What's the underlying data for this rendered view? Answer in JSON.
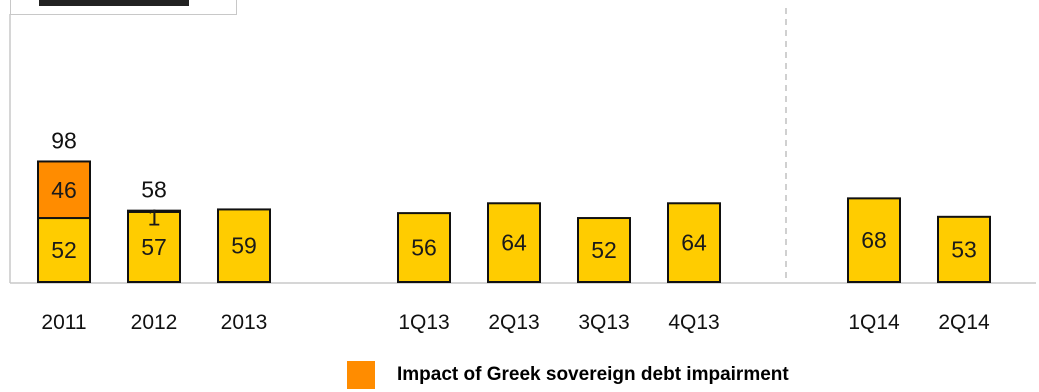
{
  "chart_data": {
    "type": "bar",
    "stacked": true,
    "categories": [
      "2011",
      "2012",
      "2013",
      "1Q13",
      "2Q13",
      "3Q13",
      "4Q13",
      "1Q14",
      "2Q14"
    ],
    "series": [
      {
        "name": "",
        "color": "#FFCC00",
        "values": [
          52,
          57,
          59,
          56,
          64,
          52,
          64,
          68,
          53
        ]
      },
      {
        "name": "Impact of Greek sovereign debt impairment",
        "color": "#FF8C00",
        "values": [
          46,
          1,
          0,
          0,
          0,
          0,
          0,
          0,
          0
        ]
      }
    ],
    "totals": [
      98,
      58,
      null,
      null,
      null,
      null,
      null,
      null,
      null
    ],
    "legend_position": "bottom",
    "grid": false
  },
  "legend": {
    "label": "Impact of Greek sovereign debt impairment"
  }
}
